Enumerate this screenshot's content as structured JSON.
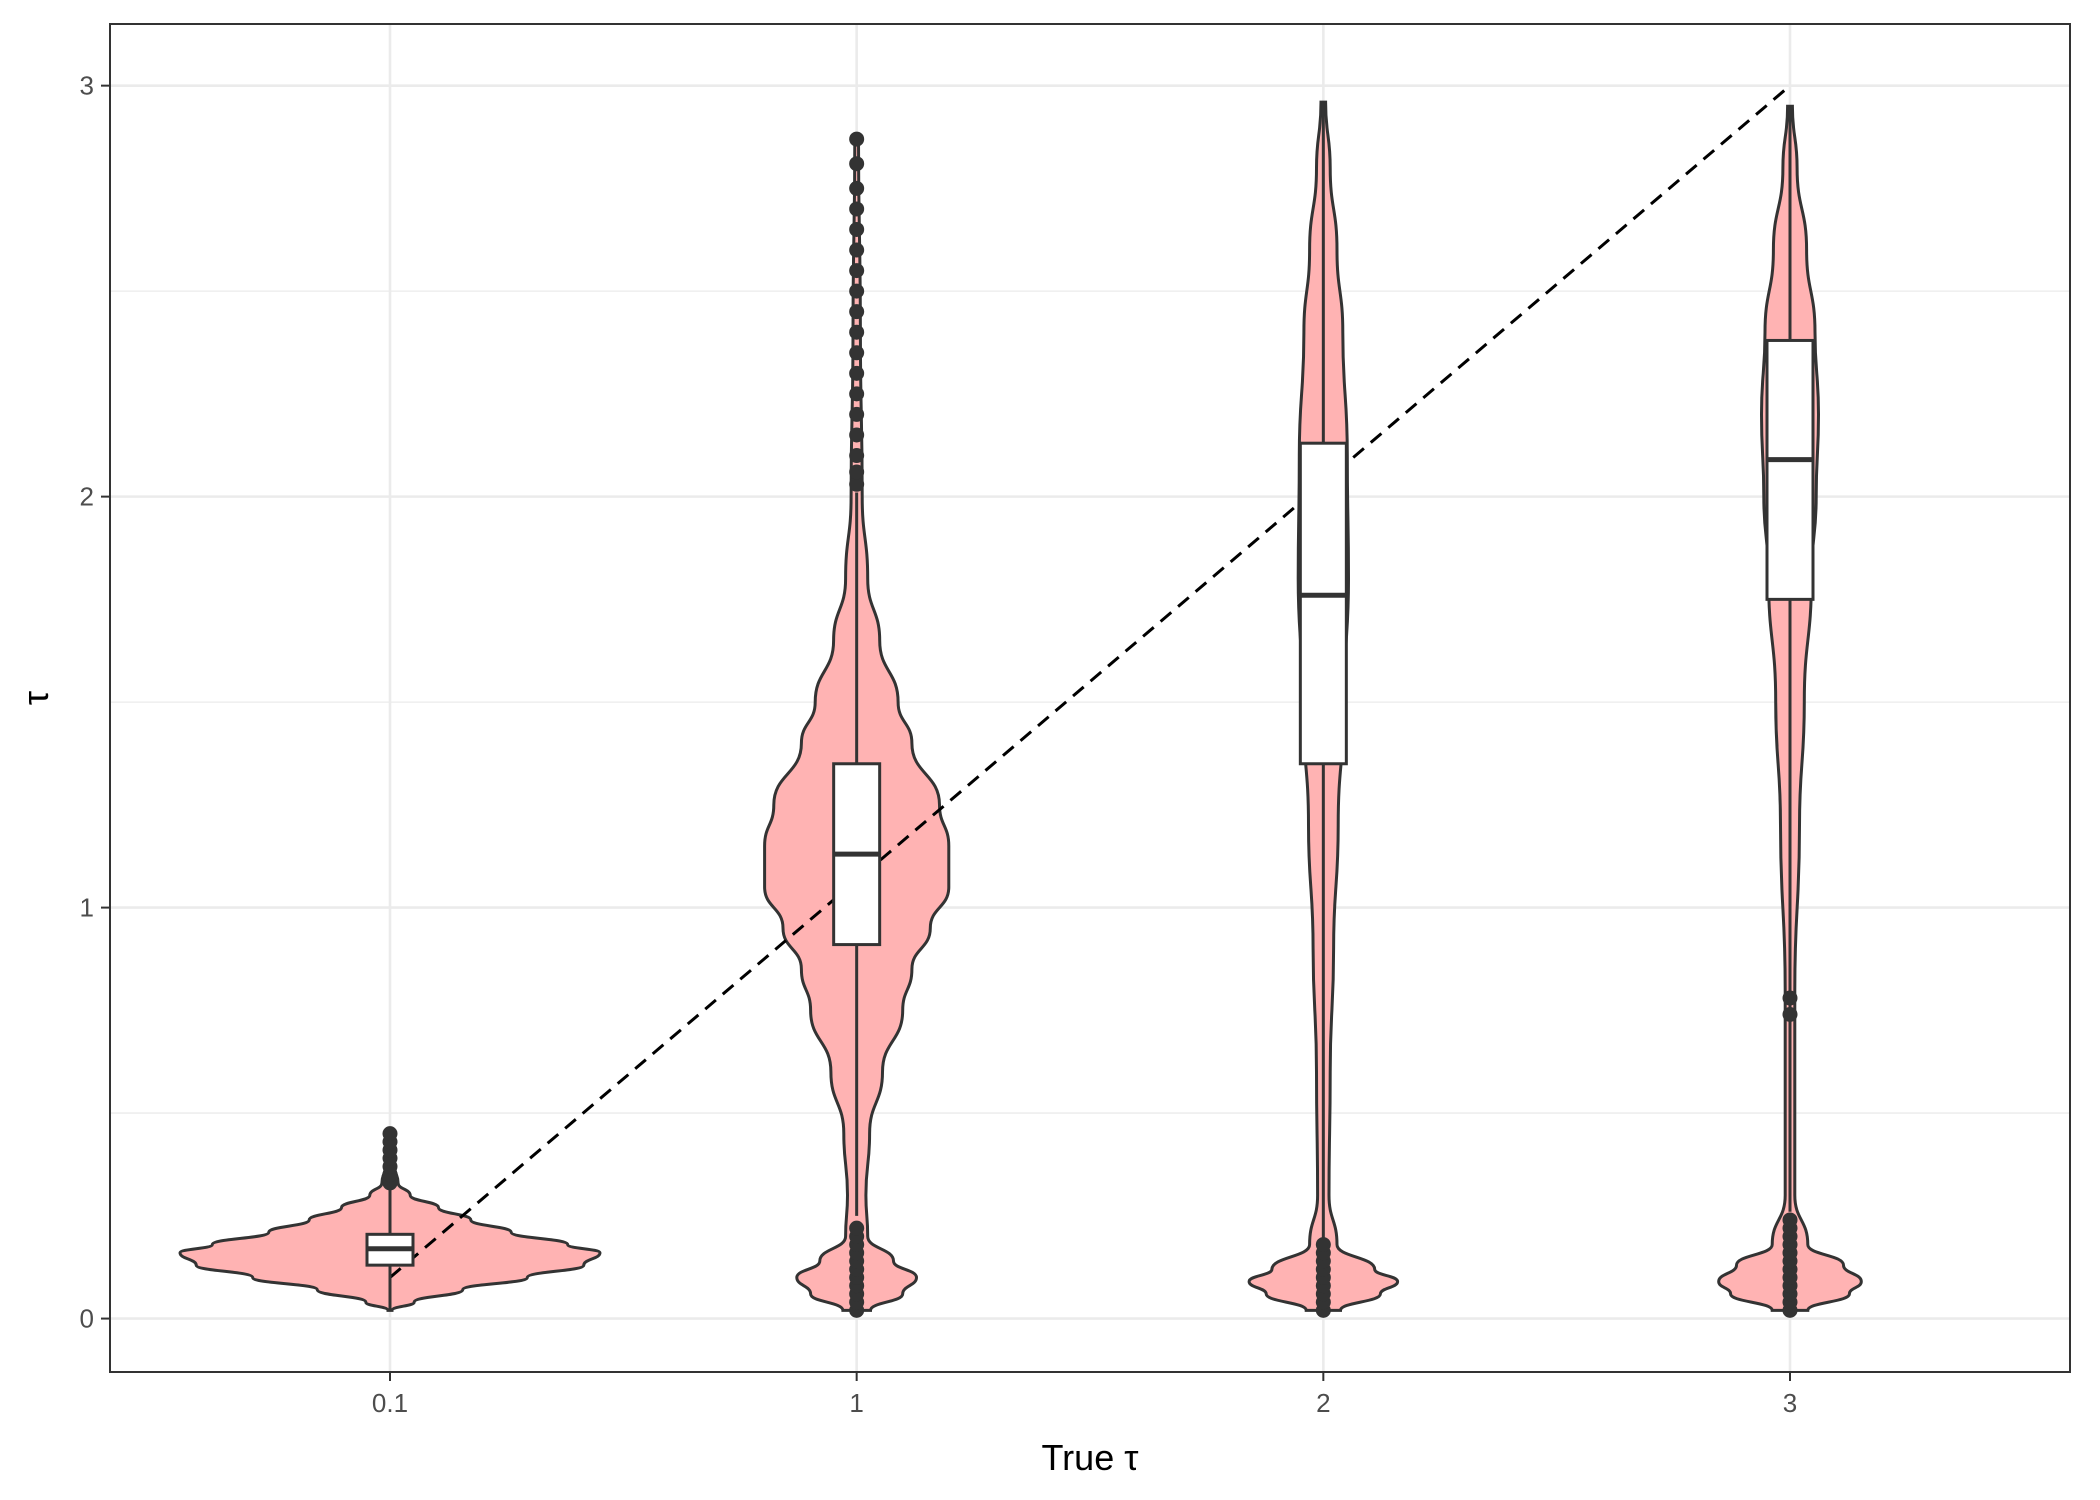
{
  "chart_data": {
    "type": "violin",
    "title": "",
    "xlabel": "True τ",
    "ylabel": "τ",
    "categories": [
      "0.1",
      "1",
      "2",
      "3"
    ],
    "category_values": [
      0.1,
      1,
      2,
      3
    ],
    "ylim": [
      -0.13,
      3.15
    ],
    "yticks": [
      0,
      1,
      2,
      3
    ],
    "ytick_labels": [
      "0",
      "1",
      "2",
      "3"
    ],
    "grid": true,
    "reference_line": {
      "type": "identity",
      "style": "dashed",
      "from": [
        0.1,
        0.1
      ],
      "to": [
        3,
        3
      ]
    },
    "colors": {
      "violin_fill": "#ffb3b3",
      "outline": "#333333",
      "box_fill": "#ffffff",
      "grid": "#ebebeb",
      "panel_border": "#333333"
    },
    "series": [
      {
        "category": "0.1",
        "box": {
          "q1": 0.13,
          "median": 0.17,
          "q3": 0.205,
          "whisker_low": 0.02,
          "whisker_high": 0.315
        },
        "outliers": [
          0.33,
          0.35,
          0.37,
          0.39,
          0.41,
          0.43,
          0.45
        ],
        "density": [
          [
            0.02,
            0.005
          ],
          [
            0.04,
            0.06
          ],
          [
            0.07,
            0.18
          ],
          [
            0.1,
            0.34
          ],
          [
            0.13,
            0.48
          ],
          [
            0.16,
            0.52
          ],
          [
            0.18,
            0.44
          ],
          [
            0.21,
            0.3
          ],
          [
            0.24,
            0.2
          ],
          [
            0.27,
            0.12
          ],
          [
            0.3,
            0.05
          ],
          [
            0.33,
            0.02
          ],
          [
            0.37,
            0.012
          ],
          [
            0.41,
            0.008
          ],
          [
            0.45,
            0.004
          ]
        ]
      },
      {
        "category": "1",
        "box": {
          "q1": 0.91,
          "median": 1.13,
          "q3": 1.35,
          "whisker_low": 0.25,
          "whisker_high": 2.01
        },
        "outliers": [
          0.02,
          0.04,
          0.06,
          0.08,
          0.1,
          0.12,
          0.14,
          0.16,
          0.18,
          0.2,
          0.22,
          2.03,
          2.06,
          2.1,
          2.15,
          2.2,
          2.25,
          2.3,
          2.35,
          2.4,
          2.45,
          2.5,
          2.55,
          2.6,
          2.65,
          2.7,
          2.75,
          2.81,
          2.87
        ],
        "density": [
          [
            0.02,
            0.015
          ],
          [
            0.06,
            0.05
          ],
          [
            0.1,
            0.065
          ],
          [
            0.14,
            0.04
          ],
          [
            0.2,
            0.012
          ],
          [
            0.3,
            0.01
          ],
          [
            0.45,
            0.014
          ],
          [
            0.6,
            0.028
          ],
          [
            0.75,
            0.05
          ],
          [
            0.85,
            0.06
          ],
          [
            0.95,
            0.08
          ],
          [
            1.05,
            0.1
          ],
          [
            1.15,
            0.1
          ],
          [
            1.25,
            0.09
          ],
          [
            1.4,
            0.06
          ],
          [
            1.5,
            0.045
          ],
          [
            1.65,
            0.025
          ],
          [
            1.8,
            0.012
          ],
          [
            2.0,
            0.006
          ],
          [
            2.4,
            0.004
          ],
          [
            2.87,
            0.002
          ]
        ]
      },
      {
        "category": "2",
        "box": {
          "q1": 1.35,
          "median": 1.76,
          "q3": 2.13,
          "whisker_low": 0.19,
          "whisker_high": 2.96
        },
        "outliers": [
          0.02,
          0.04,
          0.06,
          0.08,
          0.1,
          0.12,
          0.14,
          0.16,
          0.18
        ],
        "density": [
          [
            0.02,
            0.015
          ],
          [
            0.06,
            0.05
          ],
          [
            0.09,
            0.065
          ],
          [
            0.12,
            0.045
          ],
          [
            0.18,
            0.012
          ],
          [
            0.3,
            0.005
          ],
          [
            0.6,
            0.006
          ],
          [
            0.9,
            0.009
          ],
          [
            1.2,
            0.013
          ],
          [
            1.5,
            0.018
          ],
          [
            1.8,
            0.022
          ],
          [
            2.1,
            0.021
          ],
          [
            2.4,
            0.017
          ],
          [
            2.6,
            0.012
          ],
          [
            2.8,
            0.006
          ],
          [
            2.96,
            0.002
          ]
        ]
      },
      {
        "category": "3",
        "box": {
          "q1": 1.75,
          "median": 2.09,
          "q3": 2.38,
          "whisker_low": 0.26,
          "whisker_high": 2.95
        },
        "outliers": [
          0.02,
          0.04,
          0.06,
          0.08,
          0.1,
          0.12,
          0.14,
          0.16,
          0.18,
          0.2,
          0.22,
          0.24,
          0.74,
          0.78
        ],
        "density": [
          [
            0.02,
            0.015
          ],
          [
            0.06,
            0.05
          ],
          [
            0.09,
            0.06
          ],
          [
            0.13,
            0.045
          ],
          [
            0.18,
            0.015
          ],
          [
            0.3,
            0.004
          ],
          [
            0.8,
            0.004
          ],
          [
            1.2,
            0.008
          ],
          [
            1.5,
            0.012
          ],
          [
            1.8,
            0.018
          ],
          [
            2.0,
            0.022
          ],
          [
            2.2,
            0.024
          ],
          [
            2.4,
            0.021
          ],
          [
            2.6,
            0.014
          ],
          [
            2.8,
            0.006
          ],
          [
            2.95,
            0.002
          ]
        ]
      }
    ]
  }
}
